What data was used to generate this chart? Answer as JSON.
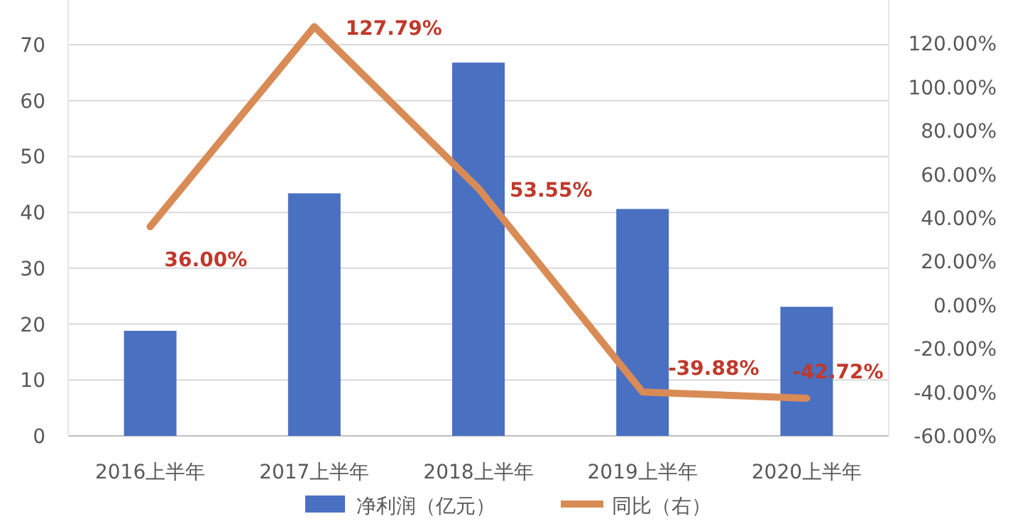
{
  "chart_data": {
    "type": "bar",
    "categories": [
      "2016上半年",
      "2017上半年",
      "2018上半年",
      "2019上半年",
      "2020上半年"
    ],
    "series": [
      {
        "name": "净利润（亿元）",
        "color": "#4a70c2",
        "values": [
          18.8,
          43.4,
          66.8,
          40.6,
          23.1
        ]
      },
      {
        "name": "同比（右）",
        "type": "line",
        "axis": "y2",
        "color": "#d98b55",
        "values": [
          36.0,
          127.79,
          53.55,
          -39.88,
          -42.72
        ],
        "value_labels": [
          "36.00%",
          "127.79%",
          "53.55%",
          "-39.88%",
          "-42.72%"
        ]
      }
    ],
    "ylim": [
      0,
      78
    ],
    "yticks": [
      0,
      10,
      20,
      30,
      40,
      50,
      60,
      70
    ],
    "y2lim": [
      -60,
      140
    ],
    "y2ticks": [
      {
        "value": -60,
        "label": "-60.00%"
      },
      {
        "value": -40,
        "label": "-40.00%"
      },
      {
        "value": -20,
        "label": "-20.00%"
      },
      {
        "value": 0,
        "label": "0.00%"
      },
      {
        "value": 20,
        "label": "20.00%"
      },
      {
        "value": 40,
        "label": "40.00%"
      },
      {
        "value": 60,
        "label": "60.00%"
      },
      {
        "value": 80,
        "label": "80.00%"
      },
      {
        "value": 100,
        "label": "100.00%"
      },
      {
        "value": 120,
        "label": "120.00%"
      }
    ],
    "grid": "y",
    "legend": "bottom",
    "marker": "none"
  }
}
